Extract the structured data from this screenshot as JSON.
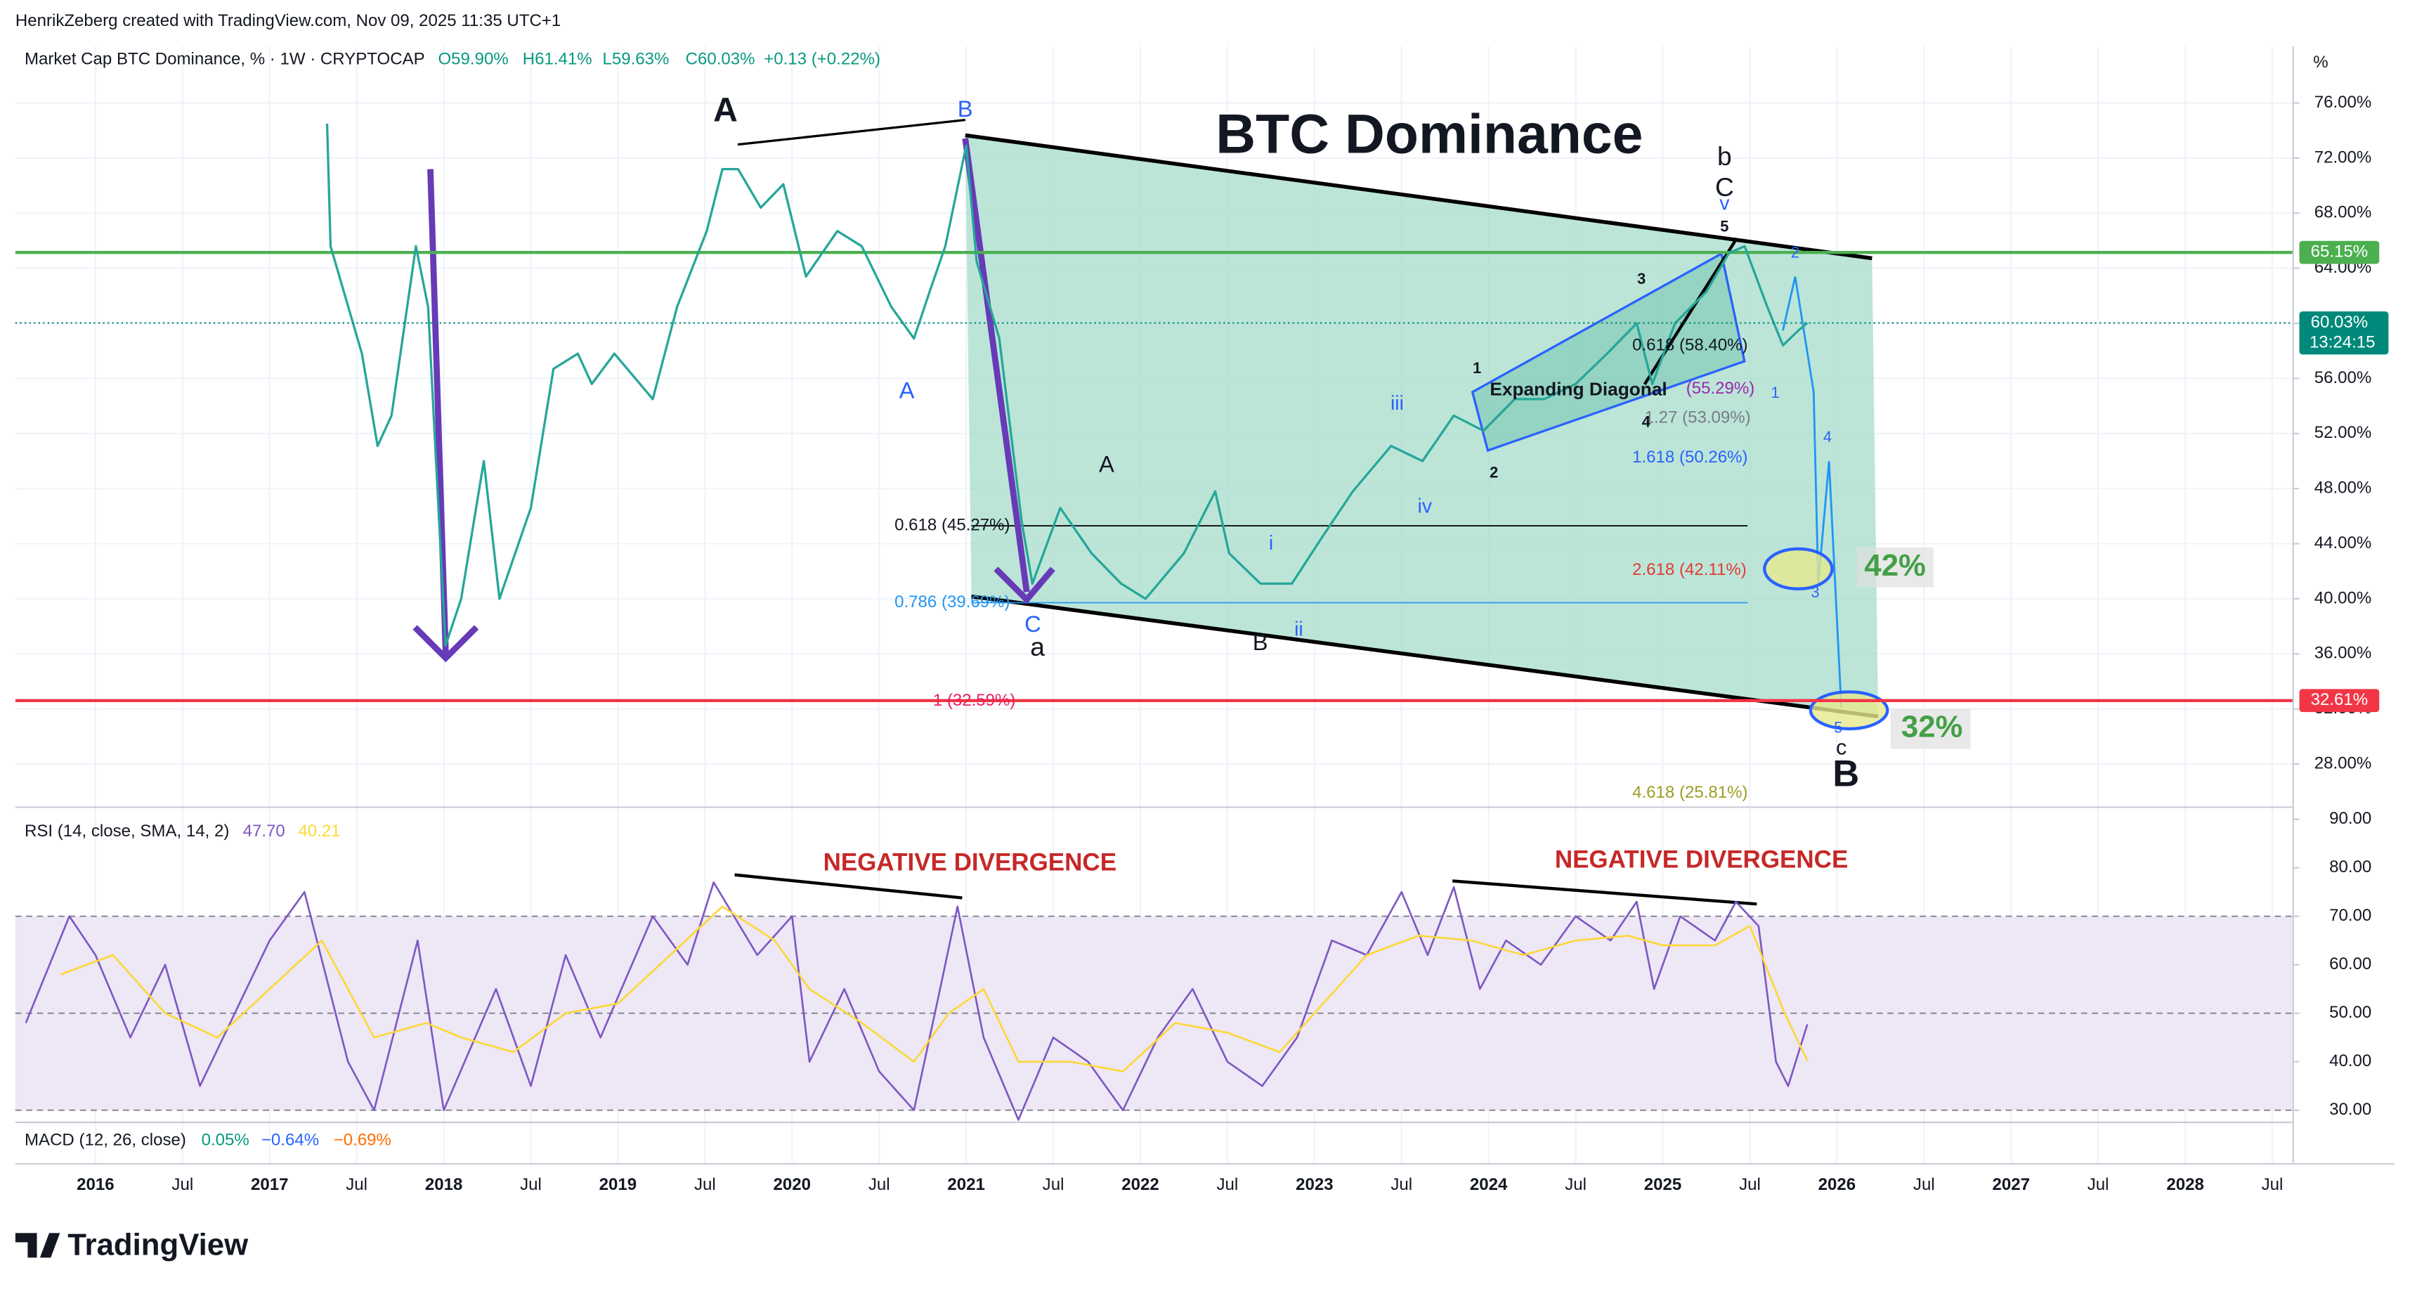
{
  "header": {
    "credit": "HenrikZeberg created with TradingView.com, Nov 09, 2025 11:35 UTC+1",
    "logo": "TradingView"
  },
  "macd_legend": {
    "title": "MACD (12, 26, close)",
    "values": [
      "0.05%",
      "−0.64%",
      "−0.69%"
    ]
  },
  "chart_data": [
    {
      "type": "line",
      "title": "Market Cap BTC Dominance, % · 1W · CRYPTOCAP",
      "legend_values": [
        "O59.90%",
        "H61.41%",
        "L59.63%",
        "C60.03%",
        "+0.13 (+0.22%)"
      ],
      "axis_unit": "%",
      "color": "#26a69a",
      "grid": true,
      "x": [
        2017.33,
        2017.35,
        2017.53,
        2017.62,
        2017.7,
        2017.84,
        2017.91,
        2018.01,
        2018.1,
        2018.23,
        2018.32,
        2018.5,
        2018.63,
        2018.77,
        2018.85,
        2018.98,
        2019.2,
        2019.34,
        2019.51,
        2019.6,
        2019.69,
        2019.82,
        2019.95,
        2020.08,
        2020.26,
        2020.4,
        2020.57,
        2020.7,
        2020.79,
        2020.88,
        2021.0,
        2021.06,
        2021.19,
        2021.32,
        2021.38,
        2021.54,
        2021.72,
        2021.89,
        2022.03,
        2022.25,
        2022.43,
        2022.51,
        2022.69,
        2022.87,
        2023.04,
        2023.22,
        2023.44,
        2023.62,
        2023.8,
        2023.97,
        2024.15,
        2024.32,
        2024.5,
        2024.68,
        2024.85,
        2024.94,
        2025.07,
        2025.25,
        2025.38,
        2025.47,
        2025.6,
        2025.69,
        2025.78,
        2025.83
      ],
      "values": [
        74.5,
        65.6,
        57.8,
        51.1,
        53.3,
        65.6,
        61.2,
        36.6,
        40,
        50,
        40,
        46.6,
        56.7,
        57.8,
        55.6,
        57.8,
        54.5,
        61.2,
        66.7,
        71.2,
        71.2,
        68.4,
        70.1,
        63.4,
        66.7,
        65.6,
        61.2,
        58.9,
        62.3,
        65.6,
        72.9,
        64.5,
        58.9,
        45.5,
        41.1,
        46.6,
        43.3,
        41.1,
        40,
        43.3,
        47.8,
        43.3,
        41.1,
        41.1,
        44.4,
        47.8,
        51.1,
        50,
        53.3,
        52.2,
        54.5,
        54.5,
        55.6,
        57.8,
        60,
        55.6,
        60,
        62.3,
        65.1,
        65.6,
        61.2,
        58.4,
        59.5,
        60.03
      ],
      "xlim": [
        2015.54,
        2028.62
      ],
      "xticks": [
        2016,
        {
          "value": 2016.5,
          "label": "Jul"
        },
        2017,
        {
          "value": 2017.5,
          "label": "Jul"
        },
        2018,
        {
          "value": 2018.5,
          "label": "Jul"
        },
        2019,
        {
          "value": 2019.5,
          "label": "Jul"
        },
        2020,
        {
          "value": 2020.5,
          "label": "Jul"
        },
        2021,
        {
          "value": 2021.5,
          "label": "Jul"
        },
        2022,
        {
          "value": 2022.5,
          "label": "Jul"
        },
        2023,
        {
          "value": 2023.5,
          "label": "Jul"
        },
        2024,
        {
          "value": 2024.5,
          "label": "Jul"
        },
        2025,
        {
          "value": 2025.5,
          "label": "Jul"
        },
        2026,
        {
          "value": 2026.5,
          "label": "Jul"
        },
        2027,
        {
          "value": 2027.5,
          "label": "Jul"
        },
        2028,
        {
          "value": 2028.5,
          "label": "Jul"
        }
      ],
      "ylim": [
        24.87,
        80.13
      ],
      "yticks": [
        {
          "value": 28,
          "label": "28.00%"
        },
        {
          "value": 32,
          "label": "32.00%"
        },
        {
          "value": 36,
          "label": "36.00%"
        },
        {
          "value": 40,
          "label": "40.00%"
        },
        {
          "value": 44,
          "label": "44.00%"
        },
        {
          "value": 48,
          "label": "48.00%"
        },
        {
          "value": 52,
          "label": "52.00%"
        },
        {
          "value": 56,
          "label": "56.00%"
        },
        {
          "value": 60,
          "label": "60.00%"
        },
        {
          "value": 64,
          "label": "64.00%"
        },
        {
          "value": 68,
          "label": "68.00%"
        },
        {
          "value": 72,
          "label": "72.00%"
        },
        {
          "value": 76,
          "label": "76.00%"
        }
      ],
      "hlines": [
        {
          "value": 65.15,
          "label": "65.15%",
          "color": "#4caf50"
        },
        {
          "value": 32.61,
          "label": "32.61%",
          "color": "#f23645"
        }
      ],
      "last_price": {
        "value": 60.03,
        "label": "60.03%",
        "countdown": "13:24:15",
        "color": "#00897b"
      },
      "annotations": [
        "BTC Dominance",
        "A",
        "B",
        "A",
        "C",
        "a",
        "A",
        "B",
        "b",
        "C",
        "v",
        "Expanding Diagonal",
        "0.618 (45.27%)",
        "0.786 (39.69%)",
        "1 (32.59%)",
        "0.618 (58.40%)",
        "1.27 (53.09%)",
        "1.618 (50.26%)",
        "2.618 (42.11%)",
        "4.618 (25.81%)",
        "(55.29%)",
        "42%",
        "32%",
        "B",
        "c",
        "5",
        "1",
        "2",
        "3",
        "4",
        "5",
        "i",
        "ii",
        "iii",
        "iv",
        "1",
        "2",
        "3",
        "4"
      ]
    },
    {
      "type": "line",
      "title": "RSI (14, close, SMA, 14, 2)",
      "legend_values": [
        "47.70",
        "40.21"
      ],
      "series": [
        {
          "color": "#7e57c2",
          "x": [
            2015.6,
            2015.85,
            2016.0,
            2016.2,
            2016.4,
            2016.6,
            2016.8,
            2017.0,
            2017.2,
            2017.45,
            2017.6,
            2017.85,
            2018.0,
            2018.3,
            2018.5,
            2018.7,
            2018.9,
            2019.2,
            2019.4,
            2019.55,
            2019.8,
            2020.0,
            2020.1,
            2020.3,
            2020.5,
            2020.7,
            2020.85,
            2020.95,
            2021.1,
            2021.3,
            2021.5,
            2021.7,
            2021.9,
            2022.1,
            2022.3,
            2022.5,
            2022.7,
            2022.9,
            2023.1,
            2023.3,
            2023.5,
            2023.65,
            2023.8,
            2023.95,
            2024.1,
            2024.3,
            2024.5,
            2024.7,
            2024.85,
            2024.95,
            2025.1,
            2025.3,
            2025.42,
            2025.55,
            2025.65,
            2025.72,
            2025.83
          ],
          "values": [
            48,
            70,
            62,
            45,
            60,
            35,
            50,
            65,
            75,
            40,
            30,
            65,
            30,
            55,
            35,
            62,
            45,
            70,
            60,
            77,
            62,
            70,
            40,
            55,
            38,
            30,
            55,
            72,
            45,
            28,
            45,
            40,
            30,
            45,
            55,
            40,
            35,
            45,
            65,
            62,
            75,
            62,
            76,
            55,
            65,
            60,
            70,
            65,
            73,
            55,
            70,
            65,
            73,
            68,
            40,
            35,
            47.7
          ]
        },
        {
          "color": "#fdd835",
          "x": [
            2015.8,
            2016.1,
            2016.4,
            2016.7,
            2017.0,
            2017.3,
            2017.6,
            2017.9,
            2018.1,
            2018.4,
            2018.7,
            2019.0,
            2019.3,
            2019.6,
            2019.9,
            2020.1,
            2020.4,
            2020.7,
            2020.9,
            2021.1,
            2021.3,
            2021.6,
            2021.9,
            2022.2,
            2022.5,
            2022.8,
            2023.0,
            2023.3,
            2023.6,
            2023.9,
            2024.2,
            2024.5,
            2024.8,
            2025.0,
            2025.3,
            2025.5,
            2025.7,
            2025.83
          ],
          "values": [
            58,
            62,
            50,
            45,
            55,
            65,
            45,
            48,
            45,
            42,
            50,
            52,
            62,
            72,
            65,
            55,
            48,
            40,
            50,
            55,
            40,
            40,
            38,
            48,
            46,
            42,
            50,
            62,
            66,
            65,
            62,
            65,
            66,
            64,
            64,
            68,
            50,
            40.21
          ]
        }
      ],
      "xlim": [
        2015.54,
        2028.62
      ],
      "ylim": [
        27.5,
        92.5
      ],
      "yticks": [
        {
          "value": 30,
          "label": "30.00"
        },
        {
          "value": 40,
          "label": "40.00"
        },
        {
          "value": 50,
          "label": "50.00"
        },
        {
          "value": 60,
          "label": "60.00"
        },
        {
          "value": 70,
          "label": "70.00"
        },
        {
          "value": 80,
          "label": "80.00"
        },
        {
          "value": 90,
          "label": "90.00"
        }
      ],
      "levels": [
        70,
        50,
        30
      ],
      "band": [
        30,
        70
      ],
      "band_color": "#ede7f6",
      "annotations": [
        "NEGATIVE DIVERGENCE",
        "NEGATIVE DIVERGENCE"
      ]
    }
  ]
}
